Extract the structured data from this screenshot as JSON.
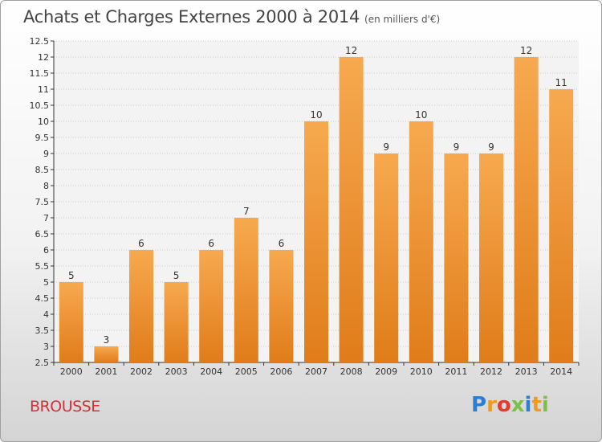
{
  "title": "Achats et Charges Externes 2000 à 2014",
  "unit_label": "(en milliers d'€)",
  "commune": "BROUSSE",
  "logo": {
    "text": "Proxiti",
    "letters": [
      {
        "ch": "P",
        "color": "#2a7fd4"
      },
      {
        "ch": "r",
        "color": "#f09a1e"
      },
      {
        "ch": "o",
        "color": "#e43b2f"
      },
      {
        "ch": "x",
        "color": "#7cc242"
      },
      {
        "ch": "i",
        "color": "#2a7fd4"
      },
      {
        "ch": "t",
        "color": "#f09a1e"
      },
      {
        "ch": "i",
        "color": "#7cc242"
      }
    ]
  },
  "colors": {
    "bar_light": "#f7a94f",
    "bar_dark": "#e07c1a",
    "grid": "#cccccc",
    "axis": "#333333"
  },
  "chart_data": {
    "type": "bar",
    "categories": [
      "2000",
      "2001",
      "2002",
      "2003",
      "2004",
      "2005",
      "2006",
      "2007",
      "2008",
      "2009",
      "2010",
      "2011",
      "2012",
      "2013",
      "2014"
    ],
    "values": [
      5,
      3,
      6,
      5,
      6,
      7,
      6,
      10,
      12,
      9,
      10,
      9,
      9,
      12,
      11
    ],
    "value_labels": [
      "5",
      "3",
      "6",
      "5",
      "6",
      "7",
      "6",
      "10",
      "12",
      "9",
      "10",
      "9",
      "9",
      "12",
      "11"
    ],
    "ylim": [
      2.5,
      12.5
    ],
    "yticks": [
      2.5,
      3,
      3.5,
      4,
      4.5,
      5,
      5.5,
      6,
      6.5,
      7,
      7.5,
      8,
      8.5,
      9,
      9.5,
      10,
      10.5,
      11,
      11.5,
      12,
      12.5
    ],
    "ytick_labels": [
      "2.5",
      "3",
      "3.5",
      "4",
      "4.5",
      "5",
      "5.5",
      "6",
      "6.5",
      "7",
      "7.5",
      "8",
      "8.5",
      "9",
      "9.5",
      "10",
      "10.5",
      "11",
      "11.5",
      "12",
      "12.5"
    ],
    "grid": true
  }
}
